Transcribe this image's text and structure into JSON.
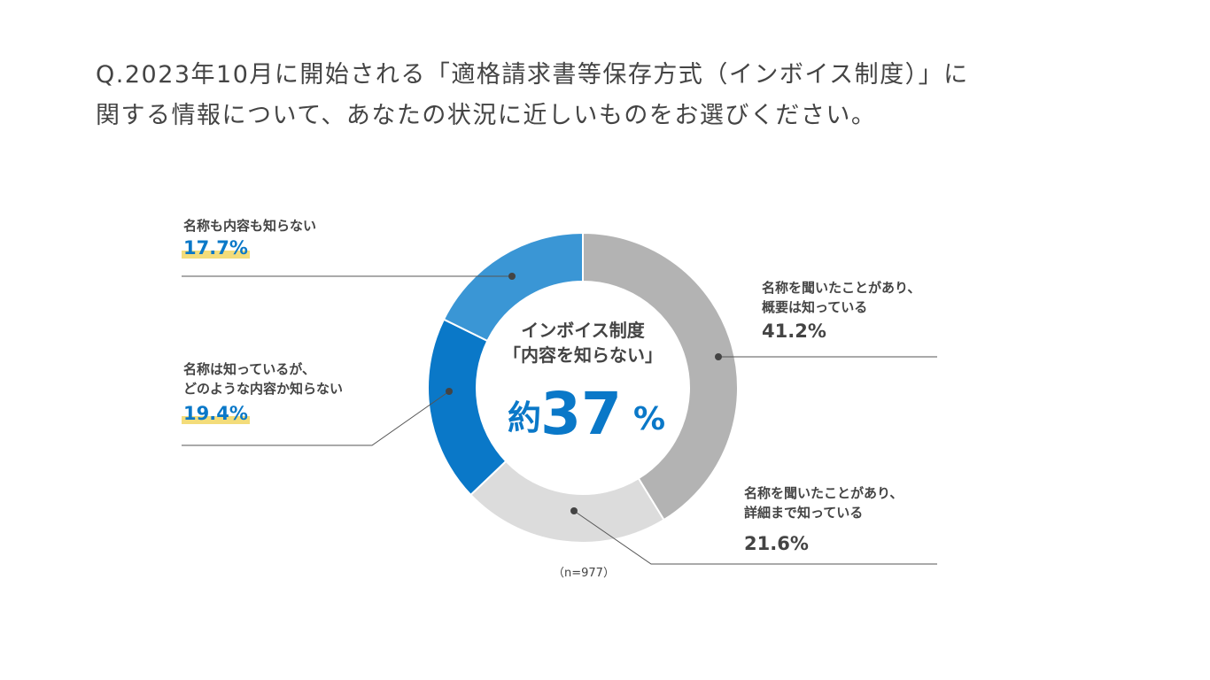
{
  "chart_data": {
    "type": "donut",
    "title": "Q.2023年10月に開始される「適格請求書等保存方式（インボイス制度）」に\n関する情報について、あなたの状況に近しいものをお選びください。",
    "categories": [
      "名称を聞いたことがあり、\n概要は知っている",
      "名称を聞いたことがあり、\n詳細まで知っている",
      "名称は知っているが、\nどのような内容か知らない",
      "名称も内容も知らない"
    ],
    "values": [
      41.2,
      21.6,
      19.4,
      17.7
    ],
    "value_labels": [
      "41.2%",
      "21.6%",
      "19.4%",
      "17.7%"
    ],
    "colors": [
      "#b3b3b3",
      "#dcdcdc",
      "#0a78c8",
      "#3a96d5"
    ],
    "center_lines": [
      "インボイス制度",
      "「内容を知らない」"
    ],
    "center_prefix": "約",
    "center_number": "37",
    "center_unit": "%",
    "note": "（n=977）"
  }
}
